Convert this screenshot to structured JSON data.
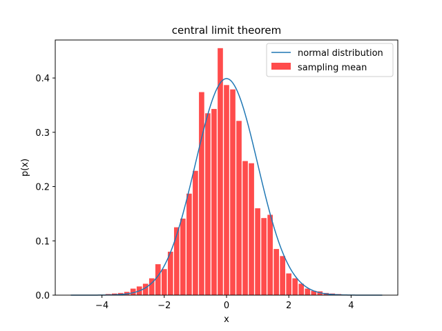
{
  "chart_data": {
    "type": "bar",
    "title": "central limit theorem",
    "xlabel": "x",
    "ylabel": "p(x)",
    "xlim": [
      -5.5,
      5.5
    ],
    "ylim": [
      0,
      0.47
    ],
    "xticks": [
      -4,
      -2,
      0,
      2,
      4
    ],
    "xtick_labels": [
      "−4",
      "−2",
      "0",
      "2",
      "4"
    ],
    "yticks": [
      0.0,
      0.1,
      0.2,
      0.3,
      0.4
    ],
    "ytick_labels": [
      "0.0",
      "0.1",
      "0.2",
      "0.3",
      "0.4"
    ],
    "grid": false,
    "legend_position": "top-right",
    "bar_width": 0.2,
    "series": [
      {
        "name": "normal distribution",
        "kind": "line",
        "color": "#1f77b4",
        "x_range": [
          -5,
          5
        ],
        "mean": 0,
        "std": 1
      },
      {
        "name": "sampling mean",
        "kind": "bar",
        "color": "#ff4c4c",
        "x": [
          -3.8,
          -3.6,
          -3.4,
          -3.2,
          -3.0,
          -2.8,
          -2.6,
          -2.4,
          -2.2,
          -2.0,
          -1.8,
          -1.6,
          -1.4,
          -1.2,
          -1.0,
          -0.8,
          -0.6,
          -0.4,
          -0.2,
          0.0,
          0.2,
          0.4,
          0.6,
          0.8,
          1.0,
          1.2,
          1.4,
          1.6,
          1.8,
          2.0,
          2.2,
          2.4,
          2.6,
          2.8,
          3.0,
          3.2,
          3.4,
          3.6,
          3.8
        ],
        "values": [
          0.002,
          0.003,
          0.004,
          0.006,
          0.012,
          0.016,
          0.021,
          0.031,
          0.057,
          0.048,
          0.08,
          0.125,
          0.141,
          0.187,
          0.229,
          0.374,
          0.335,
          0.343,
          0.455,
          0.387,
          0.379,
          0.321,
          0.247,
          0.243,
          0.16,
          0.142,
          0.148,
          0.085,
          0.072,
          0.04,
          0.031,
          0.021,
          0.012,
          0.008,
          0.007,
          0.004,
          0.003,
          0.002,
          0.001
        ]
      }
    ]
  }
}
